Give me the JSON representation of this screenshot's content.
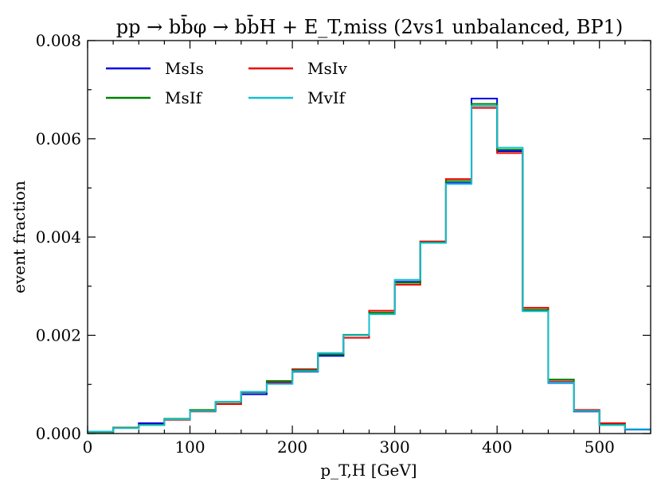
{
  "chart_data": {
    "type": "step-histogram",
    "title": "pp → bb̄φ → bb̄H + E_T,miss (2vs1 unbalanced, BP1)",
    "xlabel": "p_T,H [GeV]",
    "ylabel": "event fraction",
    "xlim": [
      0,
      550
    ],
    "ylim": [
      0,
      0.008
    ],
    "bin_edges": [
      0,
      25,
      50,
      75,
      100,
      125,
      150,
      175,
      200,
      225,
      250,
      275,
      300,
      325,
      350,
      375,
      400,
      425,
      450,
      475,
      500,
      525,
      550
    ],
    "x_ticks": [
      0,
      100,
      200,
      300,
      400,
      500
    ],
    "x_tick_labels": [
      "0",
      "100",
      "200",
      "300",
      "400",
      "500"
    ],
    "y_ticks": [
      0,
      0.002,
      0.004,
      0.006,
      0.008
    ],
    "y_tick_labels": [
      "0.000",
      "0.002",
      "0.004",
      "0.006",
      "0.008"
    ],
    "legend_position": "upper-left",
    "series": [
      {
        "name": "MsIs",
        "color": "#0000ee",
        "values": [
          3e-05,
          0.00012,
          0.00021,
          0.0003,
          0.00047,
          0.00064,
          0.0008,
          0.00102,
          0.00126,
          0.00158,
          0.002,
          0.00244,
          0.00309,
          0.0039,
          0.0051,
          0.00682,
          0.00575,
          0.0025,
          0.00103,
          0.00045,
          0.00017,
          8e-05
        ]
      },
      {
        "name": "MsIv",
        "color": "#ee0000",
        "values": [
          3e-05,
          0.00012,
          0.00018,
          0.00028,
          0.00045,
          0.0006,
          0.00084,
          0.00105,
          0.00131,
          0.00163,
          0.00195,
          0.0025,
          0.00303,
          0.00391,
          0.00518,
          0.00663,
          0.00571,
          0.00256,
          0.00106,
          0.00048,
          0.00021,
          9e-05
        ]
      },
      {
        "name": "MsIf",
        "color": "#008000",
        "values": [
          3e-05,
          0.00012,
          0.00018,
          0.0003,
          0.00048,
          0.00064,
          0.00084,
          0.00107,
          0.00129,
          0.00161,
          0.00201,
          0.00246,
          0.00307,
          0.00389,
          0.00514,
          0.00671,
          0.00578,
          0.00252,
          0.0011,
          0.00046,
          0.00018,
          9e-05
        ]
      },
      {
        "name": "MvIf",
        "color": "#17becf",
        "values": [
          4e-05,
          0.00011,
          0.00017,
          0.00029,
          0.00046,
          0.00065,
          0.00085,
          0.00101,
          0.00127,
          0.00164,
          0.002,
          0.00243,
          0.00313,
          0.00388,
          0.00508,
          0.00667,
          0.00582,
          0.00249,
          0.00104,
          0.00046,
          0.00017,
          9e-05
        ]
      }
    ]
  }
}
